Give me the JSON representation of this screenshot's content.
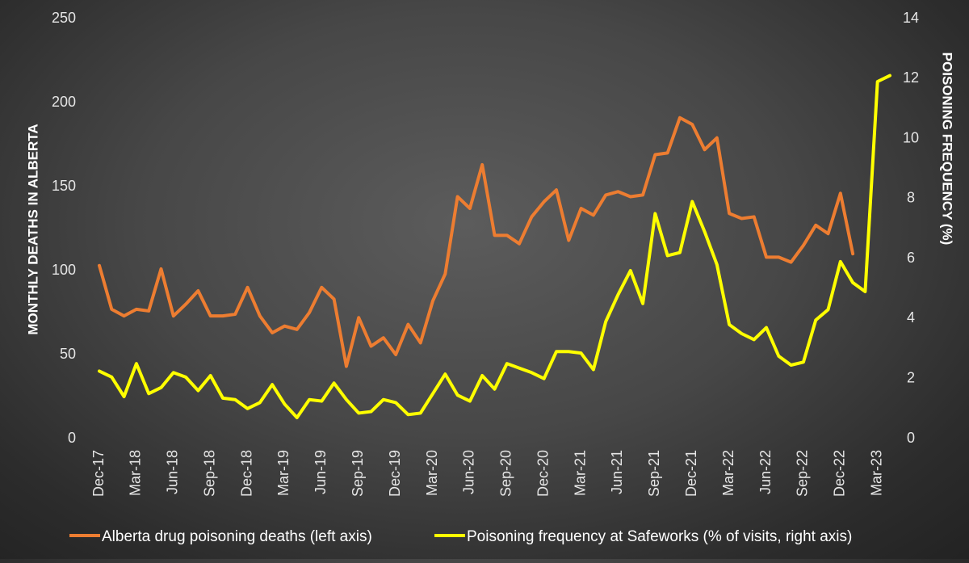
{
  "chart_data": {
    "type": "line",
    "title": "",
    "x": [
      "Dec-17",
      "Jan-18",
      "Feb-18",
      "Mar-18",
      "Apr-18",
      "May-18",
      "Jun-18",
      "Jul-18",
      "Aug-18",
      "Sep-18",
      "Oct-18",
      "Nov-18",
      "Dec-18",
      "Jan-19",
      "Feb-19",
      "Mar-19",
      "Apr-19",
      "May-19",
      "Jun-19",
      "Jul-19",
      "Aug-19",
      "Sep-19",
      "Oct-19",
      "Nov-19",
      "Dec-19",
      "Jan-20",
      "Feb-20",
      "Mar-20",
      "Apr-20",
      "May-20",
      "Jun-20",
      "Jul-20",
      "Aug-20",
      "Sep-20",
      "Oct-20",
      "Nov-20",
      "Dec-20",
      "Jan-21",
      "Feb-21",
      "Mar-21",
      "Apr-21",
      "May-21",
      "Jun-21",
      "Jul-21",
      "Aug-21",
      "Sep-21",
      "Oct-21",
      "Nov-21",
      "Dec-21",
      "Jan-22",
      "Feb-22",
      "Mar-22",
      "Apr-22",
      "May-22",
      "Jun-22",
      "Jul-22",
      "Aug-22",
      "Sep-22",
      "Oct-22",
      "Nov-22",
      "Dec-22",
      "Jan-23",
      "Feb-23",
      "Mar-23",
      "Apr-23"
    ],
    "x_tick_labels": [
      "Dec-17",
      "Mar-18",
      "Jun-18",
      "Sep-18",
      "Dec-18",
      "Mar-19",
      "Jun-19",
      "Sep-19",
      "Dec-19",
      "Mar-20",
      "Jun-20",
      "Sep-20",
      "Dec-20",
      "Mar-21",
      "Jun-21",
      "Sep-21",
      "Dec-21",
      "Mar-22",
      "Jun-22",
      "Sep-22",
      "Dec-22",
      "Mar-23"
    ],
    "y_left": {
      "label": "MONTHLY DEATHS IN ALBERTA",
      "range": [
        0,
        250
      ],
      "ticks": [
        "0",
        "50",
        "100",
        "150",
        "200",
        "250"
      ]
    },
    "y_right": {
      "label": "POISONING FREQUENCY (%)",
      "range": [
        0,
        14
      ],
      "ticks": [
        "0",
        "2",
        "4",
        "6",
        "8",
        "10",
        "12",
        "14"
      ]
    },
    "series": [
      {
        "name": "Alberta drug poisoning deaths (left axis)",
        "axis": "left",
        "color": "#ED7D31",
        "values": [
          103,
          77,
          73,
          77,
          76,
          101,
          73,
          80,
          88,
          73,
          73,
          74,
          90,
          73,
          63,
          67,
          65,
          75,
          90,
          83,
          43,
          72,
          55,
          60,
          50,
          68,
          57,
          82,
          98,
          144,
          137,
          163,
          121,
          121,
          116,
          132,
          141,
          148,
          118,
          137,
          133,
          145,
          147,
          144,
          145,
          169,
          170,
          191,
          187,
          172,
          179,
          134,
          131,
          132,
          108,
          108,
          105,
          115,
          127,
          122,
          146,
          110,
          null,
          null,
          null
        ]
      },
      {
        "name": "Poisoning frequency at Safeworks (% of visits, right axis)",
        "axis": "right",
        "color": "#FFFF00",
        "values": [
          2.25,
          2.05,
          1.4,
          2.5,
          1.5,
          1.7,
          2.2,
          2.05,
          1.6,
          2.1,
          1.35,
          1.3,
          1.0,
          1.2,
          1.8,
          1.15,
          0.7,
          1.3,
          1.25,
          1.85,
          1.3,
          0.85,
          0.9,
          1.3,
          1.2,
          0.8,
          0.85,
          1.5,
          2.15,
          1.45,
          1.25,
          2.1,
          1.65,
          2.5,
          2.35,
          2.2,
          2.0,
          2.9,
          2.9,
          2.85,
          2.3,
          3.9,
          4.8,
          5.6,
          4.5,
          7.5,
          6.1,
          6.2,
          7.9,
          6.9,
          5.8,
          3.8,
          3.5,
          3.3,
          3.7,
          2.75,
          2.45,
          2.55,
          3.95,
          4.3,
          5.9,
          5.2,
          4.9,
          11.9,
          12.1
        ]
      }
    ],
    "legend": {
      "position": "bottom"
    },
    "grid": false
  }
}
